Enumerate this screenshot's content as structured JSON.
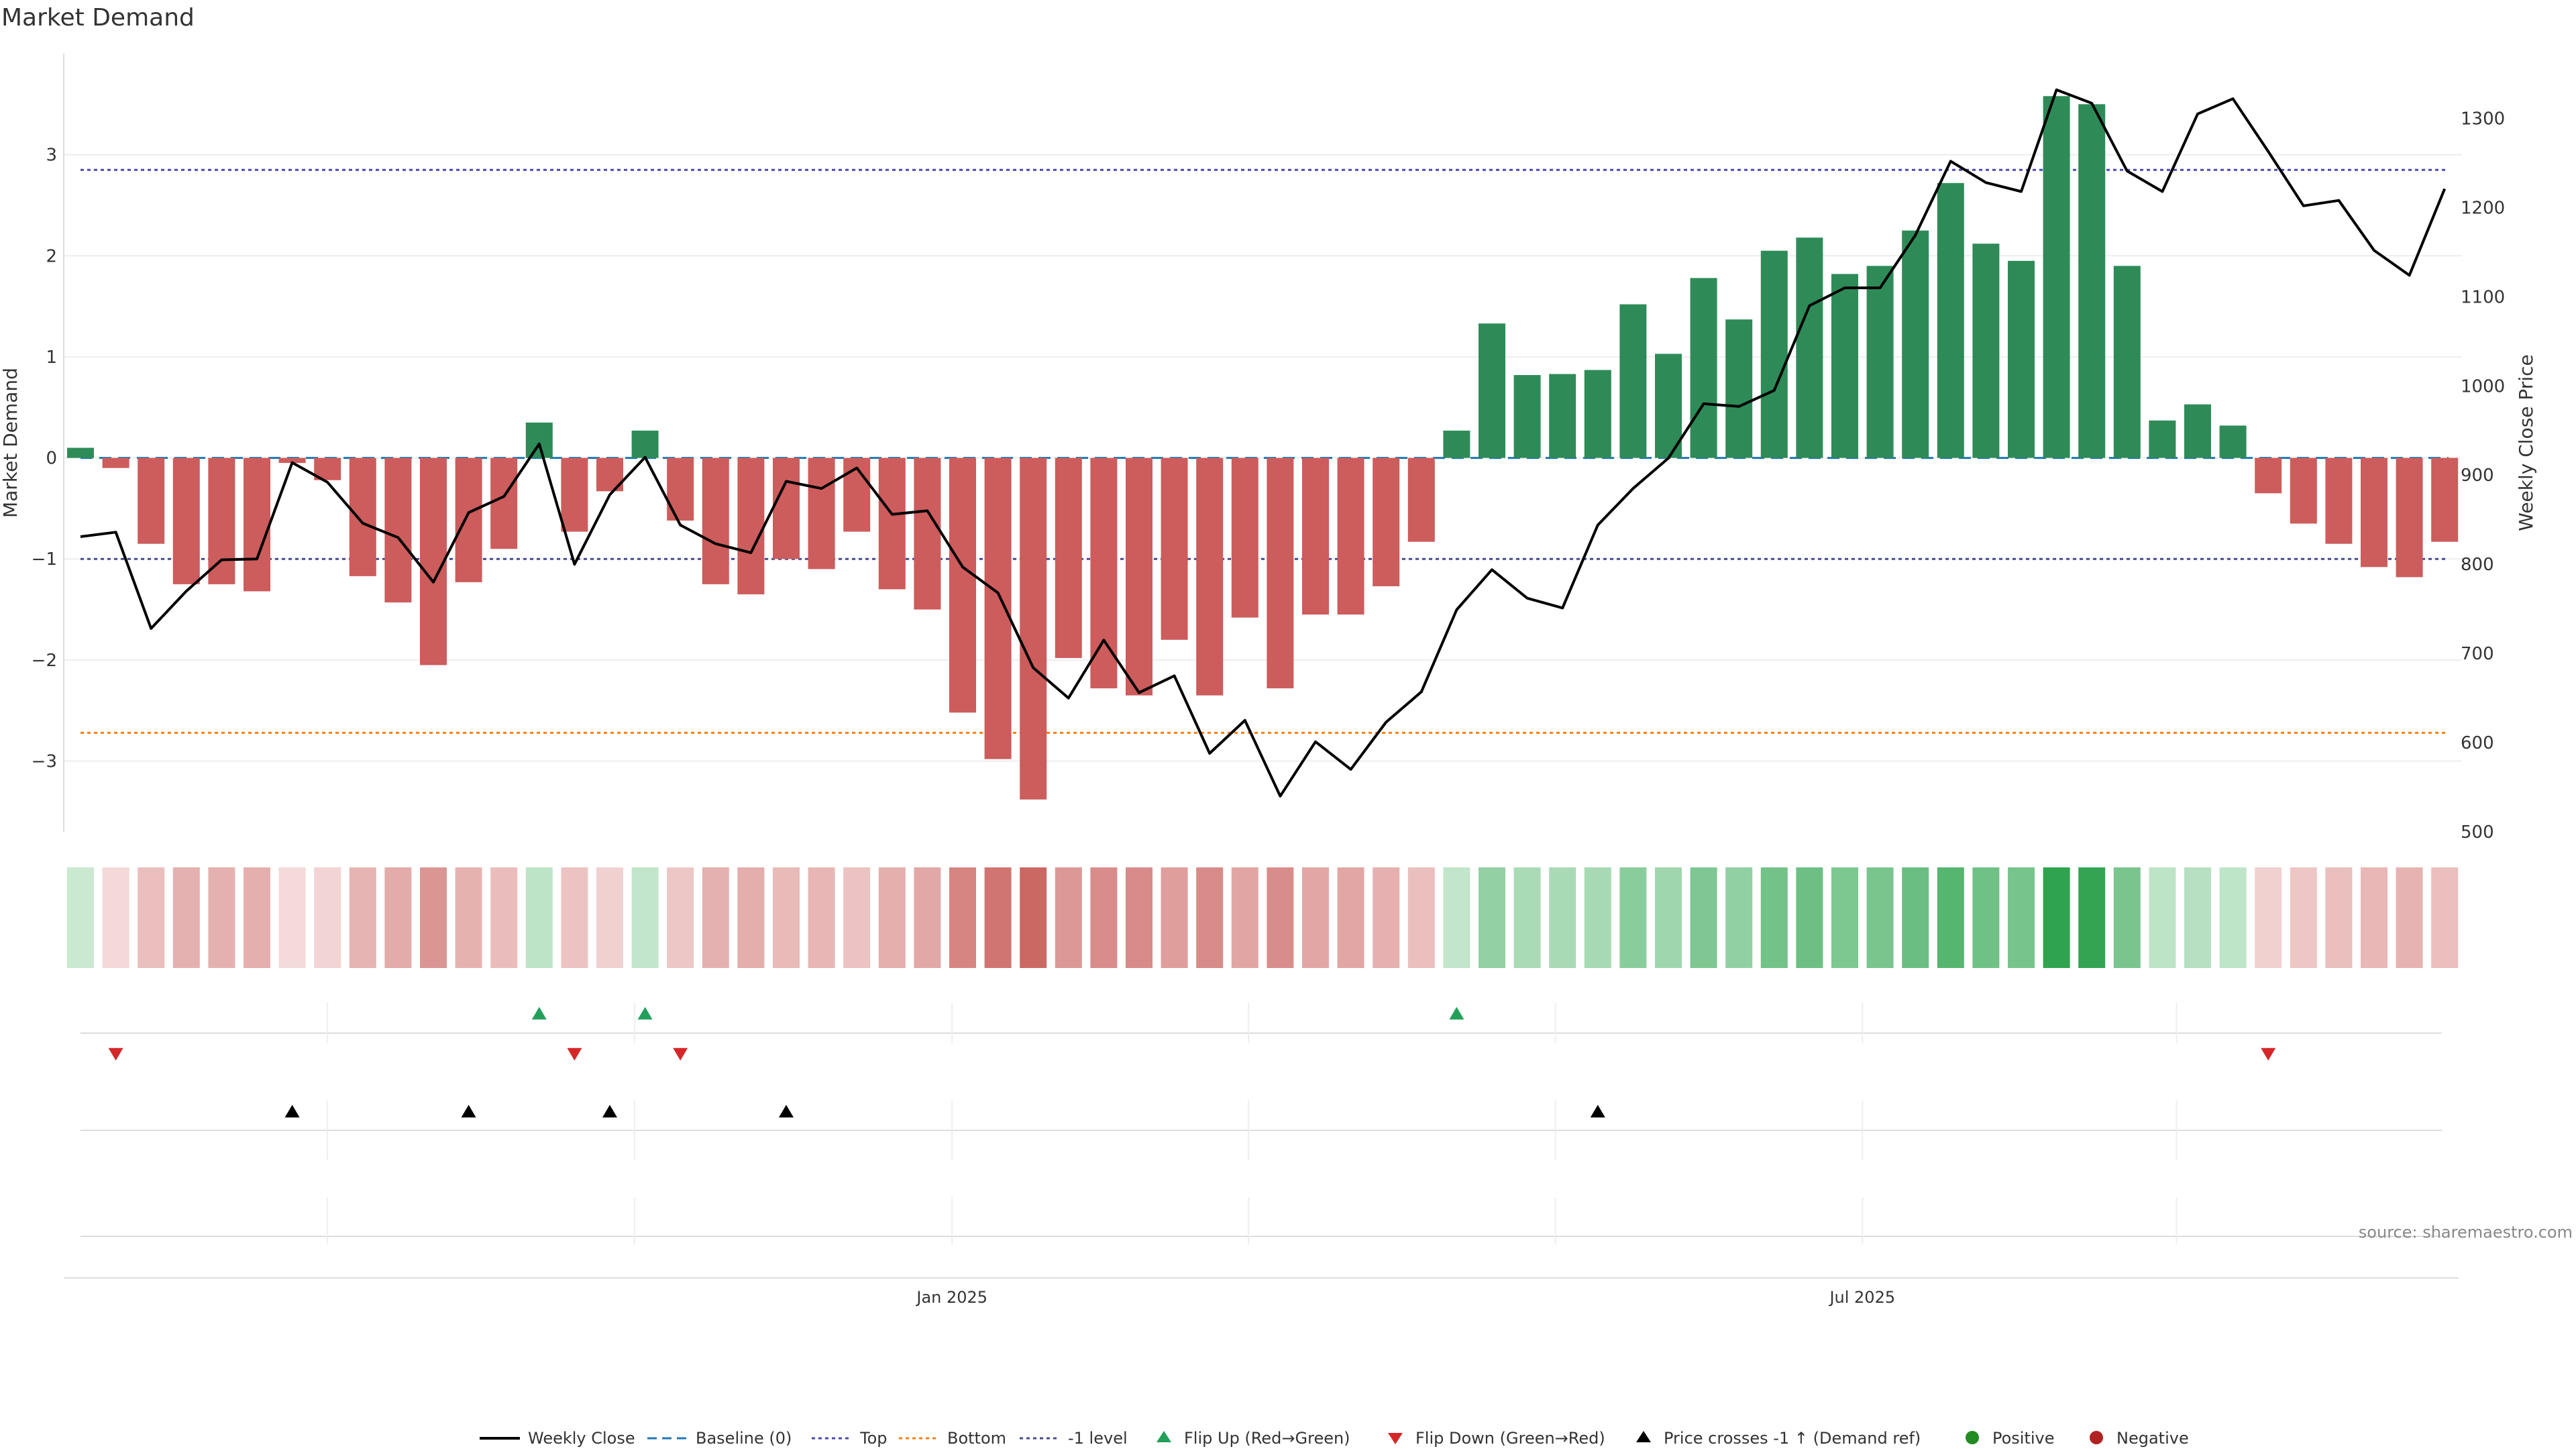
{
  "colors": {
    "pos": "#2e8b57",
    "neg": "#cd5c5c",
    "price": "#000000",
    "baseline": "#1f77b4",
    "top": "#4a4ab0",
    "bottom": "#ff7f0e",
    "minus1": "#4a4a8a",
    "flip_up": "#22a05a",
    "flip_down": "#d62728",
    "cross": "#000000",
    "positive_dot": "#228b22",
    "negative_dot": "#b22222"
  },
  "chart_data": {
    "type": "bar",
    "title": "Market Demand",
    "ylabel": "Market Demand",
    "y2label": "Weekly Close Price",
    "ylim": [
      -3.7,
      4.0
    ],
    "y2lim": [
      500,
      1350
    ],
    "yticks": [
      -3,
      -2,
      -1,
      0,
      1,
      2,
      3
    ],
    "yticklabels": [
      "−3",
      "−2",
      "−1",
      "0",
      "1",
      "2",
      "3"
    ],
    "y2ticks": [
      500,
      600,
      700,
      800,
      900,
      1000,
      1100,
      1200,
      1300
    ],
    "y2ticklabels": [
      "500",
      "600",
      "700",
      "800",
      "900",
      "1000",
      "1100",
      "1200",
      "1300"
    ],
    "x_weeks": 69,
    "xticks": [
      {
        "label": "Jan 2025",
        "week": 24.7
      },
      {
        "label": "Jul 2025",
        "week": 50.5
      }
    ],
    "month_grid_weeks": [
      7.0,
      15.7,
      24.7,
      33.1,
      41.8,
      50.5,
      59.4
    ],
    "levels": {
      "baseline": 0,
      "top": 2.85,
      "bottom": -2.72,
      "minus1": -1.0
    },
    "series": [
      {
        "name": "Market Demand",
        "values": [
          0.1,
          -0.1,
          -0.85,
          -1.25,
          -1.25,
          -1.32,
          -0.05,
          -0.22,
          -1.17,
          -1.43,
          -2.05,
          -1.23,
          -0.9,
          0.35,
          -0.73,
          -0.33,
          0.27,
          -0.62,
          -1.25,
          -1.35,
          -1.0,
          -1.1,
          -0.73,
          -1.3,
          -1.5,
          -2.52,
          -2.98,
          -3.38,
          -1.98,
          -2.28,
          -2.35,
          -1.8,
          -2.35,
          -1.58,
          -2.28,
          -1.55,
          -1.55,
          -1.27,
          -0.83,
          0.27,
          1.33,
          0.82,
          0.83,
          0.87,
          1.52,
          1.03,
          1.78,
          1.37,
          2.05,
          2.18,
          1.82,
          1.9,
          2.25,
          2.72,
          2.12,
          1.95,
          3.58,
          3.5,
          1.9,
          0.37,
          0.53,
          0.32,
          -0.35,
          -0.65,
          -0.85,
          -1.08,
          -1.18,
          -0.83,
          null
        ]
      },
      {
        "name": "Weekly Close",
        "values": [
          831,
          836,
          728,
          770,
          805,
          806,
          914,
          892,
          846,
          830,
          780,
          858,
          876,
          935,
          800,
          878,
          920,
          844,
          823,
          813,
          893,
          885,
          908,
          856,
          860,
          797,
          768,
          684,
          650,
          715,
          656,
          675,
          588,
          625,
          540,
          601,
          570,
          623,
          657,
          749,
          794,
          762,
          751,
          844,
          885,
          919,
          980,
          977,
          995,
          1090,
          1110,
          1110,
          1169,
          1252,
          1228,
          1218,
          1332,
          1317,
          1241,
          1218,
          1305,
          1322,
          1263,
          1202,
          1208,
          1152,
          1124,
          1221,
          null
        ]
      }
    ],
    "flip_up_weeks": [
      13,
      16,
      39
    ],
    "flip_down_weeks": [
      1,
      14,
      17,
      62
    ],
    "price_cross_weeks": [
      6,
      11,
      15,
      20,
      43
    ],
    "legend": [
      {
        "label": "Weekly Close",
        "kind": "line"
      },
      {
        "label": "Baseline (0)",
        "kind": "dash"
      },
      {
        "label": "Top",
        "kind": "dot-top"
      },
      {
        "label": "Bottom",
        "kind": "dot-bottom"
      },
      {
        "label": "-1 level",
        "kind": "dot-minus1"
      },
      {
        "label": "Flip Up (Red→Green)",
        "kind": "tri-up"
      },
      {
        "label": "Flip Down (Green→Red)",
        "kind": "tri-down"
      },
      {
        "label": "Price crosses -1 ↑ (Demand ref)",
        "kind": "tri-cross"
      },
      {
        "label": "Positive",
        "kind": "dot-pos"
      },
      {
        "label": "Negative",
        "kind": "dot-neg"
      }
    ],
    "source": "source: sharemaestro.com"
  }
}
